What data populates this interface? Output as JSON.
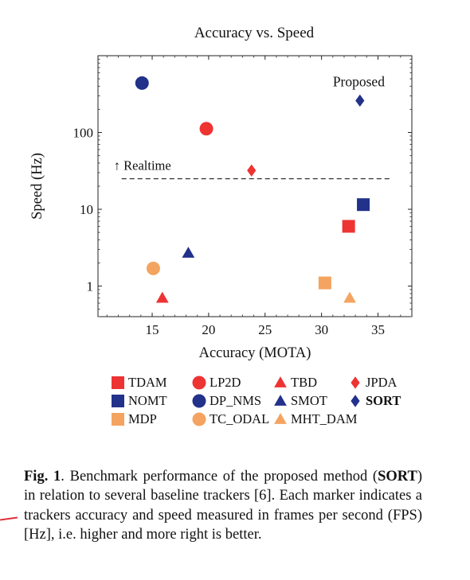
{
  "chart_data": {
    "type": "scatter",
    "title": "Accuracy vs. Speed",
    "xlabel": "Accuracy (MOTA)",
    "ylabel": "Speed (Hz)",
    "xlim": [
      10.2,
      38
    ],
    "ylim": [
      0.4,
      1000
    ],
    "y_scale": "log",
    "x_ticks": [
      15,
      20,
      25,
      30,
      35
    ],
    "y_ticks": [
      1,
      10,
      100
    ],
    "y_tick_labels": [
      "1",
      "10",
      "100"
    ],
    "grid": false,
    "legend_position": "below",
    "realtime_line": {
      "y": 25,
      "x_start": 12.3,
      "x_end": 36.2,
      "label": "↑ Realtime"
    },
    "annotations": [
      {
        "text": "Proposed",
        "x": 33.3,
        "y": 460
      }
    ],
    "series": [
      {
        "name": "TDAM",
        "marker": "square",
        "color": "#ee3333",
        "x": [
          32.4
        ],
        "y": [
          6.0
        ]
      },
      {
        "name": "LP2D",
        "marker": "circle",
        "color": "#ee3333",
        "x": [
          19.8
        ],
        "y": [
          112
        ]
      },
      {
        "name": "TBD",
        "marker": "triangle",
        "color": "#ee3333",
        "x": [
          15.9
        ],
        "y": [
          0.7
        ]
      },
      {
        "name": "JPDA",
        "marker": "diamond",
        "color": "#ee3333",
        "x": [
          23.8
        ],
        "y": [
          32
        ]
      },
      {
        "name": "NOMT",
        "marker": "square",
        "color": "#22318a",
        "x": [
          33.7
        ],
        "y": [
          11.5
        ]
      },
      {
        "name": "DP_NMS",
        "marker": "circle",
        "color": "#22318a",
        "x": [
          14.1
        ],
        "y": [
          440
        ]
      },
      {
        "name": "SMOT",
        "marker": "triangle",
        "color": "#22318a",
        "x": [
          18.2
        ],
        "y": [
          2.7
        ]
      },
      {
        "name": "SORT",
        "marker": "diamond",
        "color": "#22318a",
        "x": [
          33.4
        ],
        "y": [
          260
        ],
        "bold": true
      },
      {
        "name": "MDP",
        "marker": "square",
        "color": "#f4a460",
        "x": [
          30.3
        ],
        "y": [
          1.1
        ]
      },
      {
        "name": "TC_ODAL",
        "marker": "circle",
        "color": "#f4a460",
        "x": [
          15.1
        ],
        "y": [
          1.7
        ]
      },
      {
        "name": "MHT_DAM",
        "marker": "triangle",
        "color": "#f4a460",
        "x": [
          32.5
        ],
        "y": [
          0.7
        ]
      }
    ]
  },
  "caption": {
    "label": "Fig. 1",
    "text_before": ".    Benchmark performance of the proposed method (",
    "bold_name": "SORT",
    "text_after": ") in relation to several baseline trackers [6].  Each marker indicates a trackers accuracy and speed measured in frames per second (FPS) [Hz], i.e. higher and more right is better."
  },
  "colors": {
    "red": "#ee3333",
    "navy": "#22318a",
    "orange": "#f4a460"
  }
}
